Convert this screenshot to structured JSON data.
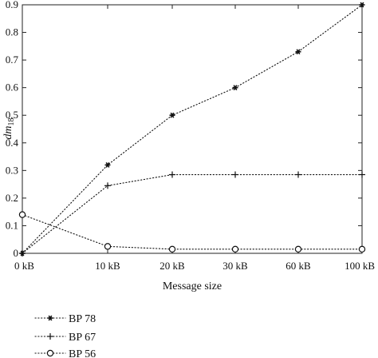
{
  "chart_data": {
    "type": "line",
    "x_categories": [
      "0 kB",
      "10 kB",
      "20 kB",
      "30 kB",
      "60 kB",
      "100 kB"
    ],
    "xlabel": "Message size",
    "ylabel": "dm",
    "ylabel_subscript": "18",
    "ylim": [
      0,
      0.9
    ],
    "yticks": [
      "0",
      "0.1",
      "0.2",
      "0.3",
      "0.4",
      "0.5",
      "0.6",
      "0.7",
      "0.8",
      "0.9"
    ],
    "grid": false,
    "legend_position": "below",
    "series": [
      {
        "name": "BP 78",
        "marker": "asterisk",
        "values": [
          0.0,
          0.32,
          0.5,
          0.6,
          0.73,
          0.9
        ]
      },
      {
        "name": "BP 67",
        "marker": "plus",
        "values": [
          0.0,
          0.245,
          0.285,
          0.285,
          0.285,
          0.285
        ]
      },
      {
        "name": "BP 56",
        "marker": "circle",
        "values": [
          0.14,
          0.025,
          0.015,
          0.015,
          0.015,
          0.015
        ]
      }
    ]
  }
}
